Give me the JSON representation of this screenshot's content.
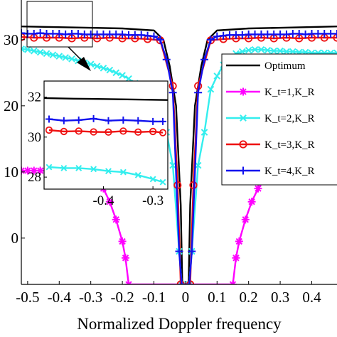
{
  "chart_data": {
    "type": "line",
    "title": "",
    "xlabel": "Normalized Doppler frequency",
    "ylabel": "",
    "xlim": [
      -0.52,
      0.48
    ],
    "ylim": [
      -7,
      36
    ],
    "x_ticks": [
      -0.5,
      -0.4,
      -0.3,
      -0.2,
      -0.1,
      0,
      0.1,
      0.2,
      0.3,
      0.4
    ],
    "x_tick_labels": [
      "-0.5",
      "-0.4",
      "-0.3",
      "-0.2",
      "-0.1",
      "0",
      "0.1",
      "0.2",
      "0.3",
      "0.4"
    ],
    "y_ticks": [
      30,
      20,
      10,
      0
    ],
    "y_tick_labels": [
      "30",
      "20",
      "10",
      "0"
    ],
    "grid": false,
    "legend_position": "right",
    "series": [
      {
        "name": "Optimum",
        "color": "#000000",
        "marker": "none",
        "points": [
          [
            -0.52,
            32.0
          ],
          [
            -0.3,
            31.8
          ],
          [
            -0.2,
            31.7
          ],
          [
            -0.1,
            31.4
          ],
          [
            -0.07,
            30.0
          ],
          [
            -0.05,
            26.0
          ],
          [
            -0.03,
            20.0
          ],
          [
            -0.015,
            5.0
          ],
          [
            -0.01,
            -7.0
          ],
          [
            0.01,
            -7.0
          ],
          [
            0.015,
            5.0
          ],
          [
            0.03,
            20.0
          ],
          [
            0.05,
            26.0
          ],
          [
            0.07,
            30.0
          ],
          [
            0.1,
            31.4
          ],
          [
            0.2,
            31.7
          ],
          [
            0.3,
            31.8
          ],
          [
            0.48,
            32.0
          ]
        ]
      },
      {
        "name": "K_t=1,K_R",
        "color": "#ff00ff",
        "marker": "asterisk",
        "points": [
          [
            -0.52,
            10.2
          ],
          [
            -0.5,
            10.2
          ],
          [
            -0.48,
            10.2
          ],
          [
            -0.46,
            10.2
          ],
          [
            -0.44,
            10.2
          ],
          [
            -0.42,
            10.2
          ],
          [
            -0.4,
            10.2
          ],
          [
            -0.38,
            10.2
          ],
          [
            -0.36,
            10.1
          ],
          [
            -0.34,
            10.0
          ],
          [
            -0.32,
            9.8
          ],
          [
            -0.3,
            9.5
          ],
          [
            -0.28,
            8.8
          ],
          [
            -0.26,
            7.5
          ],
          [
            -0.24,
            5.5
          ],
          [
            -0.22,
            2.8
          ],
          [
            -0.2,
            -0.5
          ],
          [
            -0.19,
            -3.0
          ],
          [
            -0.18,
            -7.0
          ],
          [
            0.15,
            -7.0
          ],
          [
            0.16,
            -3.0
          ],
          [
            0.17,
            -0.5
          ],
          [
            0.19,
            2.8
          ],
          [
            0.21,
            5.5
          ],
          [
            0.23,
            7.5
          ],
          [
            0.25,
            8.8
          ],
          [
            0.27,
            9.5
          ],
          [
            0.29,
            9.8
          ],
          [
            0.31,
            10.0
          ],
          [
            0.33,
            10.1
          ],
          [
            0.35,
            10.2
          ],
          [
            0.37,
            10.2
          ],
          [
            0.39,
            10.2
          ],
          [
            0.41,
            10.2
          ],
          [
            0.43,
            10.2
          ],
          [
            0.45,
            10.2
          ],
          [
            0.48,
            10.2
          ]
        ]
      },
      {
        "name": "K_t=2,K_R",
        "color": "#33eeee",
        "marker": "x",
        "points": [
          [
            -0.52,
            28.6
          ],
          [
            -0.5,
            28.5
          ],
          [
            -0.48,
            28.3
          ],
          [
            -0.46,
            28.1
          ],
          [
            -0.44,
            27.9
          ],
          [
            -0.42,
            27.7
          ],
          [
            -0.4,
            27.5
          ],
          [
            -0.38,
            27.3
          ],
          [
            -0.36,
            27.1
          ],
          [
            -0.34,
            26.8
          ],
          [
            -0.32,
            26.5
          ],
          [
            -0.3,
            26.3
          ],
          [
            -0.28,
            26.0
          ],
          [
            -0.26,
            25.7
          ],
          [
            -0.24,
            25.4
          ],
          [
            -0.22,
            25.0
          ],
          [
            -0.2,
            24.6
          ],
          [
            -0.18,
            24.1
          ],
          [
            -0.16,
            23.4
          ],
          [
            -0.14,
            22.7
          ],
          [
            -0.12,
            21.8
          ],
          [
            -0.1,
            20.8
          ],
          [
            -0.08,
            19.5
          ],
          [
            -0.06,
            16.0
          ],
          [
            -0.04,
            11.0
          ],
          [
            -0.02,
            -2.0
          ],
          [
            -0.012,
            -7.0
          ],
          [
            0.012,
            -7.0
          ],
          [
            0.02,
            -2.0
          ],
          [
            0.04,
            11.0
          ],
          [
            0.06,
            16.0
          ],
          [
            0.08,
            22.5
          ],
          [
            0.1,
            24.5
          ],
          [
            0.12,
            26.2
          ],
          [
            0.14,
            27.2
          ],
          [
            0.16,
            27.9
          ],
          [
            0.18,
            28.2
          ],
          [
            0.2,
            28.4
          ],
          [
            0.22,
            28.5
          ],
          [
            0.24,
            28.5
          ],
          [
            0.26,
            28.4
          ],
          [
            0.28,
            28.3
          ],
          [
            0.3,
            28.3
          ],
          [
            0.32,
            28.2
          ],
          [
            0.34,
            28.2
          ],
          [
            0.36,
            28.1
          ],
          [
            0.38,
            28.1
          ],
          [
            0.4,
            28.0
          ],
          [
            0.42,
            28.0
          ],
          [
            0.44,
            28.0
          ],
          [
            0.46,
            28.0
          ],
          [
            0.48,
            28.0
          ]
        ]
      },
      {
        "name": "K_t=3,K_R",
        "color": "#ee1111",
        "marker": "circle",
        "points": [
          [
            -0.52,
            30.4
          ],
          [
            -0.48,
            30.3
          ],
          [
            -0.44,
            30.3
          ],
          [
            -0.4,
            30.3
          ],
          [
            -0.36,
            30.2
          ],
          [
            -0.32,
            30.3
          ],
          [
            -0.28,
            30.2
          ],
          [
            -0.24,
            30.3
          ],
          [
            -0.2,
            30.2
          ],
          [
            -0.16,
            30.2
          ],
          [
            -0.12,
            30.1
          ],
          [
            -0.08,
            29.9
          ],
          [
            -0.04,
            23.0
          ],
          [
            -0.025,
            8.0
          ],
          [
            -0.015,
            -7.0
          ],
          [
            0.015,
            -7.0
          ],
          [
            0.025,
            8.0
          ],
          [
            0.04,
            23.0
          ],
          [
            0.08,
            29.9
          ],
          [
            0.12,
            30.1
          ],
          [
            0.16,
            30.2
          ],
          [
            0.2,
            30.2
          ],
          [
            0.24,
            30.3
          ],
          [
            0.28,
            30.2
          ],
          [
            0.32,
            30.3
          ],
          [
            0.36,
            30.2
          ],
          [
            0.4,
            30.3
          ],
          [
            0.44,
            30.3
          ],
          [
            0.48,
            30.3
          ]
        ]
      },
      {
        "name": "K_t=4,K_R",
        "color": "#1111ee",
        "marker": "plus",
        "points": [
          [
            -0.52,
            31.0
          ],
          [
            -0.5,
            30.9
          ],
          [
            -0.48,
            30.9
          ],
          [
            -0.46,
            31.0
          ],
          [
            -0.44,
            30.9
          ],
          [
            -0.42,
            30.9
          ],
          [
            -0.4,
            30.9
          ],
          [
            -0.38,
            30.8
          ],
          [
            -0.36,
            30.9
          ],
          [
            -0.34,
            30.9
          ],
          [
            -0.32,
            30.8
          ],
          [
            -0.3,
            30.8
          ],
          [
            -0.28,
            30.8
          ],
          [
            -0.26,
            30.8
          ],
          [
            -0.24,
            30.8
          ],
          [
            -0.22,
            30.8
          ],
          [
            -0.2,
            30.8
          ],
          [
            -0.18,
            30.7
          ],
          [
            -0.16,
            30.7
          ],
          [
            -0.14,
            30.7
          ],
          [
            -0.12,
            30.6
          ],
          [
            -0.1,
            30.5
          ],
          [
            -0.08,
            30.0
          ],
          [
            -0.06,
            27.0
          ],
          [
            -0.04,
            22.0
          ],
          [
            -0.02,
            -2.0
          ],
          [
            -0.012,
            -7.0
          ],
          [
            0.012,
            -7.0
          ],
          [
            0.02,
            -2.0
          ],
          [
            0.04,
            22.0
          ],
          [
            0.06,
            27.0
          ],
          [
            0.08,
            30.0
          ],
          [
            0.1,
            30.5
          ],
          [
            0.12,
            30.6
          ],
          [
            0.14,
            30.7
          ],
          [
            0.16,
            30.7
          ],
          [
            0.18,
            30.7
          ],
          [
            0.2,
            30.8
          ],
          [
            0.22,
            30.8
          ],
          [
            0.24,
            30.8
          ],
          [
            0.26,
            30.8
          ],
          [
            0.28,
            30.8
          ],
          [
            0.3,
            30.8
          ],
          [
            0.32,
            30.8
          ],
          [
            0.34,
            30.9
          ],
          [
            0.36,
            30.9
          ],
          [
            0.38,
            30.8
          ],
          [
            0.4,
            30.9
          ],
          [
            0.42,
            30.9
          ],
          [
            0.44,
            30.9
          ],
          [
            0.46,
            30.9
          ],
          [
            0.48,
            30.9
          ]
        ]
      }
    ],
    "inset": {
      "xlim": [
        -0.52,
        -0.27
      ],
      "ylim": [
        27.4,
        32.8
      ],
      "x_ticks": [
        -0.4,
        -0.3
      ],
      "x_tick_labels": [
        "-0.4",
        "-0.3"
      ],
      "y_ticks": [
        32,
        30,
        28
      ],
      "y_tick_labels": [
        "32",
        "30",
        "28"
      ],
      "series": [
        {
          "name": "Optimum",
          "color": "#000000",
          "marker": "none",
          "points": [
            [
              -0.52,
              31.95
            ],
            [
              -0.46,
              31.92
            ],
            [
              -0.4,
              31.9
            ],
            [
              -0.34,
              31.88
            ],
            [
              -0.27,
              31.85
            ]
          ]
        },
        {
          "name": "K_t=4,K_R",
          "color": "#1111ee",
          "marker": "plus",
          "points": [
            [
              -0.51,
              30.9
            ],
            [
              -0.48,
              30.82
            ],
            [
              -0.45,
              30.85
            ],
            [
              -0.42,
              30.92
            ],
            [
              -0.39,
              30.82
            ],
            [
              -0.36,
              30.85
            ],
            [
              -0.33,
              30.82
            ],
            [
              -0.3,
              30.78
            ],
            [
              -0.28,
              30.78
            ]
          ]
        },
        {
          "name": "K_t=3,K_R",
          "color": "#ee1111",
          "marker": "circle",
          "points": [
            [
              -0.51,
              30.35
            ],
            [
              -0.48,
              30.28
            ],
            [
              -0.45,
              30.3
            ],
            [
              -0.42,
              30.26
            ],
            [
              -0.39,
              30.25
            ],
            [
              -0.36,
              30.3
            ],
            [
              -0.33,
              30.25
            ],
            [
              -0.3,
              30.28
            ],
            [
              -0.28,
              30.22
            ]
          ]
        },
        {
          "name": "K_t=2,K_R",
          "color": "#33eeee",
          "marker": "x",
          "points": [
            [
              -0.51,
              28.5
            ],
            [
              -0.48,
              28.45
            ],
            [
              -0.45,
              28.45
            ],
            [
              -0.42,
              28.4
            ],
            [
              -0.39,
              28.3
            ],
            [
              -0.36,
              28.25
            ],
            [
              -0.33,
              28.1
            ],
            [
              -0.3,
              27.9
            ],
            [
              -0.28,
              27.75
            ]
          ]
        }
      ]
    },
    "legend": [
      {
        "label": "Optimum",
        "series": "Optimum"
      },
      {
        "label": "K_t=1,K_R",
        "series": "K_t=1,K_R"
      },
      {
        "label": "K_t=2,K_R",
        "series": "K_t=2,K_R"
      },
      {
        "label": "K_t=3,K_R",
        "series": "K_t=3,K_R"
      },
      {
        "label": "K_t=4,K_R",
        "series": "K_t=4,K_R"
      }
    ]
  }
}
